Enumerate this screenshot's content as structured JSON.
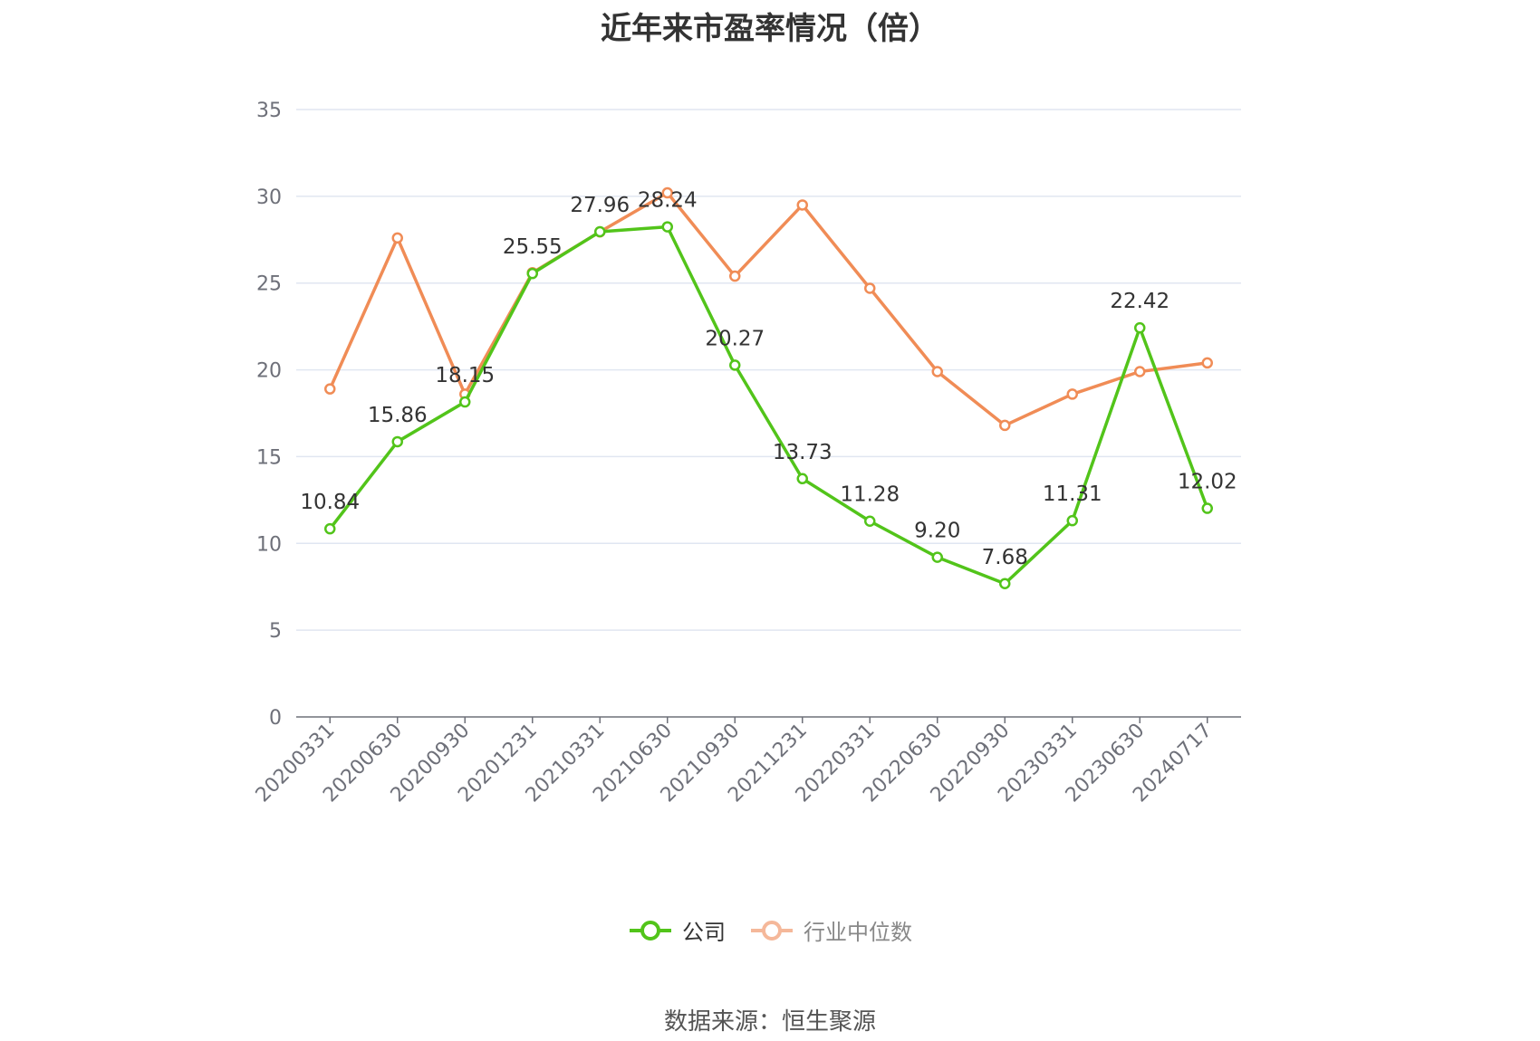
{
  "chart_data": {
    "type": "line",
    "title": "近年来市盈率情况（倍）",
    "categories": [
      "20200331",
      "20200630",
      "20200930",
      "20201231",
      "20210331",
      "20210630",
      "20210930",
      "20211231",
      "20220331",
      "20220630",
      "20220930",
      "20230331",
      "20230630",
      "20240717"
    ],
    "series": [
      {
        "name": "公司",
        "color": "#52c41a",
        "values": [
          10.84,
          15.86,
          18.15,
          25.55,
          27.96,
          28.24,
          20.27,
          13.73,
          11.28,
          9.2,
          7.68,
          11.31,
          22.42,
          12.02
        ],
        "labels": [
          "10.84",
          "15.86",
          "18.15",
          "25.55",
          "27.96",
          "28.24",
          "20.27",
          "13.73",
          "11.28",
          "9.20",
          "7.68",
          "11.31",
          "22.42",
          "12.02"
        ]
      },
      {
        "name": "行业中位数",
        "color": "#f08c56",
        "values": [
          18.9,
          27.6,
          18.6,
          25.6,
          27.95,
          30.2,
          25.4,
          29.5,
          24.7,
          19.9,
          16.8,
          18.6,
          19.9,
          20.4
        ]
      }
    ],
    "yticks": [
      "0",
      "5",
      "10",
      "15",
      "20",
      "25",
      "30",
      "35"
    ],
    "ylim": [
      0,
      35
    ],
    "grid": true,
    "legend_position": "bottom"
  },
  "source": "数据来源：恒生聚源"
}
